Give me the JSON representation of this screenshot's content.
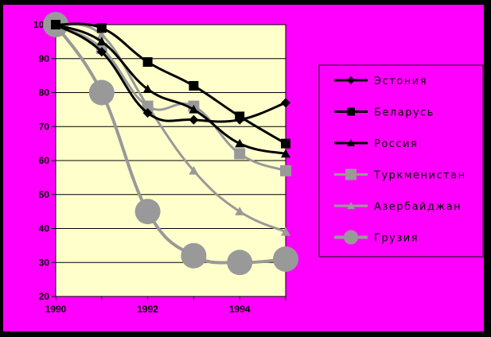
{
  "colors": {
    "frame": "#000000",
    "background": "#FF00FF",
    "plot_bg": "#FFFFCC",
    "black_series": "#000000",
    "gray_series": "#999999"
  },
  "chart_data": {
    "type": "line",
    "title": "",
    "xlabel": "",
    "ylabel": "",
    "xlim": [
      1990,
      1995
    ],
    "ylim": [
      20,
      100
    ],
    "x_ticks": [
      "1990",
      "1992",
      "1994"
    ],
    "y_ticks": [
      "100",
      "90",
      "80",
      "70",
      "60",
      "50",
      "40",
      "30",
      "20"
    ],
    "grid": "horizontal",
    "legend_position": "right",
    "x": [
      1990,
      1991,
      1992,
      1993,
      1994,
      1995
    ],
    "series": [
      {
        "name": "Эстония",
        "color": "#000000",
        "marker": "diamond",
        "values": [
          100,
          92,
          74,
          72,
          72,
          77
        ]
      },
      {
        "name": "Беларусь",
        "color": "#000000",
        "marker": "square",
        "values": [
          100,
          99,
          89,
          82,
          73,
          65
        ]
      },
      {
        "name": "Россия",
        "color": "#000000",
        "marker": "triangle",
        "values": [
          100,
          95,
          81,
          75,
          65,
          62
        ]
      },
      {
        "name": "Туркменистан",
        "color": "#999999",
        "marker": "square",
        "values": [
          100,
          93,
          76,
          76,
          62,
          57
        ]
      },
      {
        "name": "Азербайджан",
        "color": "#999999",
        "marker": "triangle",
        "values": [
          100,
          97,
          76,
          57,
          45,
          39
        ]
      },
      {
        "name": "Грузия",
        "color": "#999999",
        "marker": "circle",
        "values": [
          100,
          80,
          45,
          32,
          30,
          31
        ]
      }
    ]
  }
}
